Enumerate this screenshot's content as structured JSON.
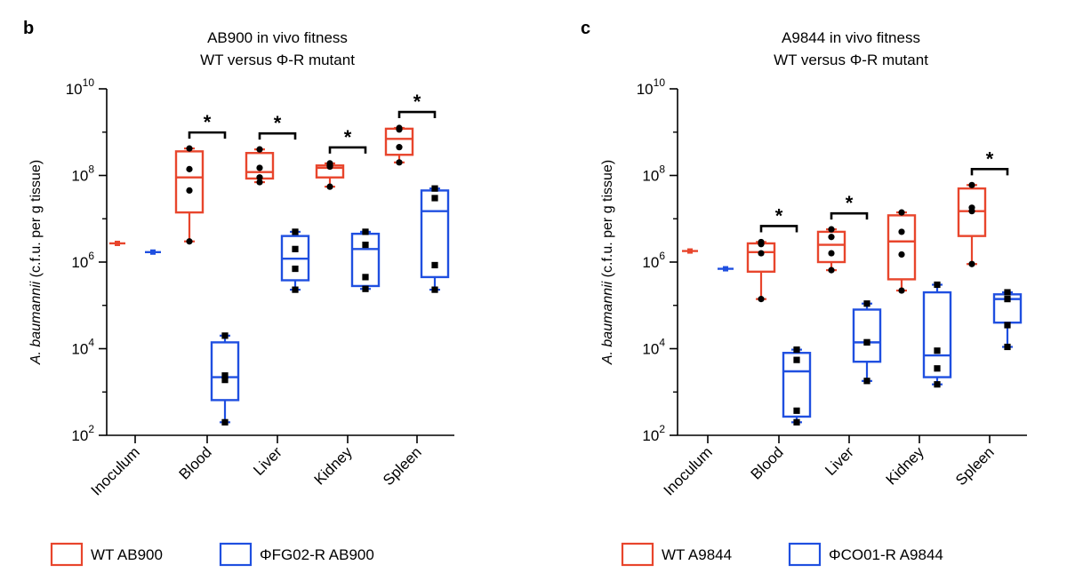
{
  "colors": {
    "wt": "#e8452c",
    "mutant": "#1f4fe0",
    "axis": "#000000",
    "wt_point": "#000000",
    "mutant_point": "#000000"
  },
  "panels": [
    {
      "letter": "b",
      "title_line1": "AB900 in vivo fitness",
      "title_line2": "WT versus Φ-R mutant",
      "ylabel_italic": "A. baumannii",
      "ylabel_rest": " (c.f.u. per g tissue)",
      "legend": [
        {
          "label": "WT AB900",
          "color_key": "wt"
        },
        {
          "label": "ΦFG02-R AB900",
          "color_key": "mutant"
        }
      ]
    },
    {
      "letter": "c",
      "title_line1": "A9844 in vivo fitness",
      "title_line2": "WT versus Φ-R mutant",
      "ylabel_italic": "A. baumannii",
      "ylabel_rest": " (c.f.u. per g tissue)",
      "legend": [
        {
          "label": "WT A9844",
          "color_key": "wt"
        },
        {
          "label": "ΦCO01-R A9844",
          "color_key": "mutant"
        }
      ]
    }
  ],
  "chart_data": [
    {
      "type": "box",
      "title": "AB900 in vivo fitness\nWT versus Φ-R mutant",
      "ylabel": "A. baumannii (c.f.u. per g tissue)",
      "yscale": "log10",
      "ylim": [
        100,
        10000000000
      ],
      "yticks": [
        {
          "value": 100,
          "base": "10",
          "exp": "2"
        },
        {
          "value": 10000,
          "base": "10",
          "exp": "4"
        },
        {
          "value": 1000000,
          "base": "10",
          "exp": "6"
        },
        {
          "value": 100000000,
          "base": "10",
          "exp": "8"
        },
        {
          "value": 10000000000,
          "base": "10",
          "exp": "10"
        }
      ],
      "categories": [
        "Inoculum",
        "Blood",
        "Liver",
        "Kidney",
        "Spleen"
      ],
      "significance": [
        {
          "category": "Blood",
          "label": "*"
        },
        {
          "category": "Liver",
          "label": "*"
        },
        {
          "category": "Kidney",
          "label": "*"
        },
        {
          "category": "Spleen",
          "label": "*"
        }
      ],
      "series": [
        {
          "name": "WT AB900",
          "color_key": "wt",
          "marker": "circle",
          "boxes": [
            {
              "category": "Inoculum",
              "min": 2700000,
              "q1": 2700000,
              "median": 2700000,
              "q3": 2700000,
              "max": 2700000,
              "points": []
            },
            {
              "category": "Blood",
              "min": 3000000,
              "q1": 14000000,
              "median": 90000000,
              "q3": 360000000,
              "max": 420000000,
              "points": [
                3000000,
                45000000,
                140000000,
                420000000
              ]
            },
            {
              "category": "Liver",
              "min": 70000000,
              "q1": 85000000,
              "median": 120000000,
              "q3": 330000000,
              "max": 400000000,
              "points": [
                70000000,
                90000000,
                150000000,
                400000000
              ]
            },
            {
              "category": "Kidney",
              "min": 55000000,
              "q1": 90000000,
              "median": 150000000,
              "q3": 170000000,
              "max": 190000000,
              "points": [
                55000000,
                160000000,
                170000000,
                190000000
              ]
            },
            {
              "category": "Spleen",
              "min": 200000000,
              "q1": 300000000,
              "median": 700000000,
              "q3": 1200000000,
              "max": 1250000000,
              "points": [
                200000000,
                450000000,
                1150000000,
                1250000000
              ]
            }
          ]
        },
        {
          "name": "ΦFG02-R AB900",
          "color_key": "mutant",
          "marker": "square",
          "boxes": [
            {
              "category": "Inoculum",
              "min": 1700000,
              "q1": 1700000,
              "median": 1700000,
              "q3": 1700000,
              "max": 1700000,
              "points": []
            },
            {
              "category": "Blood",
              "min": 200,
              "q1": 650,
              "median": 2200,
              "q3": 14000,
              "max": 20000,
              "points": [
                200,
                1900,
                2400,
                20000
              ]
            },
            {
              "category": "Liver",
              "min": 230000,
              "q1": 380000,
              "median": 1200000,
              "q3": 4000000,
              "max": 5000000,
              "points": [
                230000,
                700000,
                2000000,
                5000000
              ]
            },
            {
              "category": "Kidney",
              "min": 240000,
              "q1": 280000,
              "median": 2000000,
              "q3": 4500000,
              "max": 5000000,
              "points": [
                240000,
                450000,
                2500000,
                5000000
              ]
            },
            {
              "category": "Spleen",
              "min": 230000,
              "q1": 450000,
              "median": 15000000,
              "q3": 45000000,
              "max": 50000000,
              "points": [
                230000,
                850000,
                30000000,
                50000000
              ]
            }
          ]
        }
      ]
    },
    {
      "type": "box",
      "title": "A9844 in vivo fitness\nWT versus Φ-R mutant",
      "ylabel": "A. baumannii (c.f.u. per g tissue)",
      "yscale": "log10",
      "ylim": [
        100,
        10000000000
      ],
      "yticks": [
        {
          "value": 100,
          "base": "10",
          "exp": "2"
        },
        {
          "value": 10000,
          "base": "10",
          "exp": "4"
        },
        {
          "value": 1000000,
          "base": "10",
          "exp": "6"
        },
        {
          "value": 100000000,
          "base": "10",
          "exp": "8"
        },
        {
          "value": 10000000000,
          "base": "10",
          "exp": "10"
        }
      ],
      "categories": [
        "Inoculum",
        "Blood",
        "Liver",
        "Kidney",
        "Spleen"
      ],
      "significance": [
        {
          "category": "Blood",
          "label": "*"
        },
        {
          "category": "Liver",
          "label": "*"
        },
        {
          "category": "Spleen",
          "label": "*"
        }
      ],
      "series": [
        {
          "name": "WT A9844",
          "color_key": "wt",
          "marker": "circle",
          "boxes": [
            {
              "category": "Inoculum",
              "min": 1800000,
              "q1": 1800000,
              "median": 1800000,
              "q3": 1800000,
              "max": 1800000,
              "points": []
            },
            {
              "category": "Blood",
              "min": 140000,
              "q1": 600000,
              "median": 1700000,
              "q3": 2700000,
              "max": 2900000,
              "points": [
                140000,
                1600000,
                2600000,
                2900000
              ]
            },
            {
              "category": "Liver",
              "min": 650000,
              "q1": 1000000,
              "median": 2500000,
              "q3": 5000000,
              "max": 5700000,
              "points": [
                650000,
                1600000,
                3800000,
                5700000
              ]
            },
            {
              "category": "Kidney",
              "min": 220000,
              "q1": 400000,
              "median": 3000000,
              "q3": 12000000,
              "max": 14000000,
              "points": [
                220000,
                1500000,
                5000000,
                14000000
              ]
            },
            {
              "category": "Spleen",
              "min": 900000,
              "q1": 4000000,
              "median": 15000000,
              "q3": 50000000,
              "max": 60000000,
              "points": [
                900000,
                15000000,
                18000000,
                60000000
              ]
            }
          ]
        },
        {
          "name": "ΦCO01-R A9844",
          "color_key": "mutant",
          "marker": "square",
          "boxes": [
            {
              "category": "Inoculum",
              "min": 700000,
              "q1": 700000,
              "median": 700000,
              "q3": 700000,
              "max": 700000,
              "points": []
            },
            {
              "category": "Blood",
              "min": 200,
              "q1": 270,
              "median": 3000,
              "q3": 8000,
              "max": 9500,
              "points": [
                200,
                370,
                5500,
                9500
              ]
            },
            {
              "category": "Liver",
              "min": 1800,
              "q1": 5000,
              "median": 14000,
              "q3": 80000,
              "max": 110000,
              "points": [
                1800,
                14000,
                14000,
                110000
              ]
            },
            {
              "category": "Kidney",
              "min": 1500,
              "q1": 2200,
              "median": 7000,
              "q3": 200000,
              "max": 300000,
              "points": [
                1500,
                3500,
                9000,
                300000
              ]
            },
            {
              "category": "Spleen",
              "min": 11000,
              "q1": 40000,
              "median": 140000,
              "q3": 180000,
              "max": 200000,
              "points": [
                11000,
                35000,
                140000,
                200000
              ]
            }
          ]
        }
      ]
    }
  ]
}
